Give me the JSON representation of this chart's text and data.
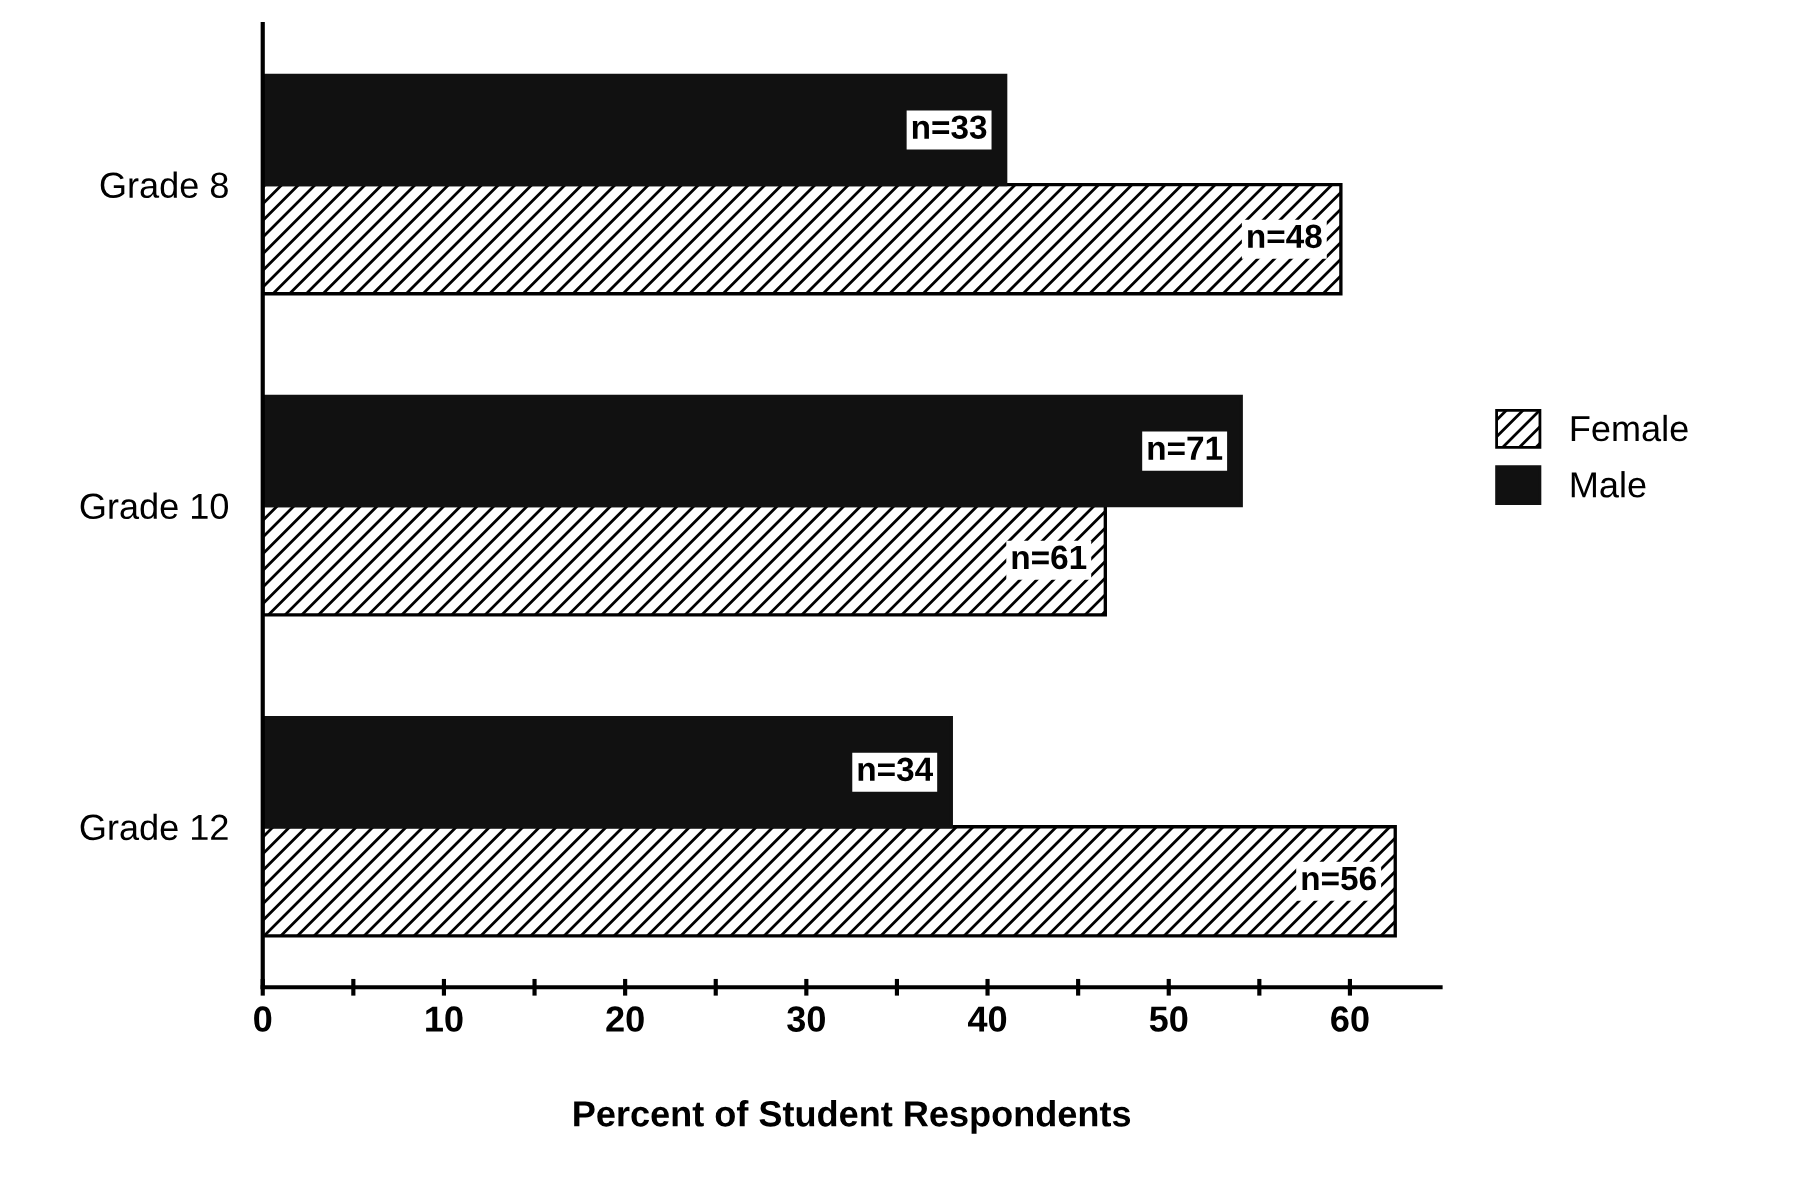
{
  "chart_data": {
    "type": "bar",
    "orientation": "horizontal",
    "xlabel": "Percent of Student Respondents",
    "categories": [
      "Grade 8",
      "Grade 10",
      "Grade 12"
    ],
    "series": [
      {
        "name": "Female",
        "color": "#000000",
        "values": [
          59.5,
          46.5,
          62.5
        ]
      },
      {
        "name": "Male",
        "color": "#111111",
        "values": [
          41,
          54,
          38
        ]
      }
    ],
    "annotations": [
      {
        "text": "n=48",
        "x": 59.5,
        "y": "Grade 8"
      },
      {
        "text": "n=61",
        "x": 46.5,
        "y": "Grade 10"
      },
      {
        "text": "n=56",
        "x": 62.5,
        "y": "Grade 12"
      },
      {
        "text": "n=33",
        "x": 41,
        "y": "Grade 8"
      },
      {
        "text": "n=71",
        "x": 54,
        "y": "Grade 10"
      },
      {
        "text": "n=34",
        "x": 38,
        "y": "Grade 12"
      }
    ],
    "xlim": [
      0,
      65
    ],
    "xticks": [
      0,
      {
        "value": 5,
        "label": null
      },
      10,
      {
        "value": 15,
        "label": null
      },
      20,
      {
        "value": 25,
        "label": null
      },
      30,
      {
        "value": 35,
        "label": null
      },
      40,
      {
        "value": 45,
        "label": null
      },
      50,
      {
        "value": 55,
        "label": null
      },
      60
    ],
    "grid": false,
    "legend": "right"
  }
}
